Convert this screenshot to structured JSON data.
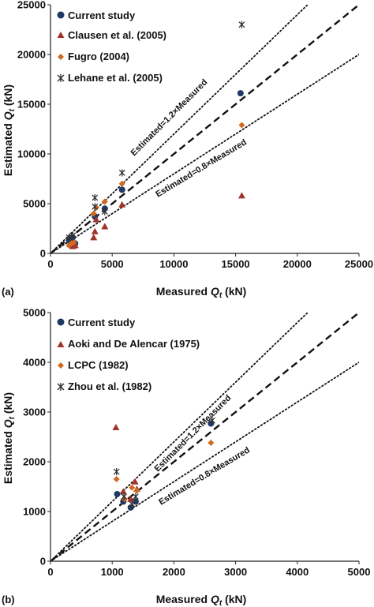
{
  "chart_data": [
    {
      "type": "scatter",
      "panel_label": "(a)",
      "xlabel_main": "Measured ",
      "xlabel_var": "Q",
      "xlabel_sub": "t",
      "xlabel_unit": " (kN)",
      "ylabel_main": "Estimated ",
      "ylabel_var": "Q",
      "ylabel_sub": "t",
      "ylabel_unit": " (kN)",
      "xlim": [
        0,
        25000
      ],
      "ylim": [
        0,
        25000
      ],
      "xticks": [
        0,
        5000,
        10000,
        15000,
        20000,
        25000
      ],
      "yticks": [
        0,
        5000,
        10000,
        15000,
        20000,
        25000
      ],
      "xtick_labels": [
        "0",
        "5000",
        "10000",
        "15000",
        "20000",
        "25000"
      ],
      "ytick_labels": [
        "0",
        "5000",
        "10000",
        "15000",
        "20000",
        "25000"
      ],
      "grid": false,
      "legend_position": "top-left",
      "reference_lines": [
        {
          "slope": 1.0,
          "style": "dashed",
          "label": ""
        },
        {
          "slope": 1.2,
          "style": "dotted",
          "label": "Estimated=1.2×Measured"
        },
        {
          "slope": 0.8,
          "style": "dotted",
          "label": "Estimated=0.8×Measured"
        }
      ],
      "series": [
        {
          "name": "Current study",
          "marker": "circle",
          "color": "#1f3864",
          "points": [
            [
              1500,
              1300
            ],
            [
              1700,
              1500
            ],
            [
              1800,
              1600
            ],
            [
              2000,
              1000
            ],
            [
              3600,
              3700
            ],
            [
              4400,
              4500
            ],
            [
              5800,
              6400
            ],
            [
              15400,
              16100
            ]
          ]
        },
        {
          "name": "Clausen et al. (2005)",
          "marker": "triangle",
          "color": "#a0342a",
          "points": [
            [
              1600,
              900
            ],
            [
              1800,
              700
            ],
            [
              2000,
              800
            ],
            [
              3500,
              1600
            ],
            [
              3600,
              2200
            ],
            [
              3700,
              3400
            ],
            [
              4400,
              2700
            ],
            [
              5800,
              4900
            ],
            [
              15500,
              5800
            ]
          ]
        },
        {
          "name": "Fugro (2004)",
          "marker": "diamond",
          "color": "#d2691e",
          "points": [
            [
              1500,
              800
            ],
            [
              1700,
              1000
            ],
            [
              1900,
              1100
            ],
            [
              3500,
              4000
            ],
            [
              3700,
              4600
            ],
            [
              4400,
              5200
            ],
            [
              5800,
              7000
            ],
            [
              15500,
              12900
            ]
          ]
        },
        {
          "name": "Lehane et al. (2005)",
          "marker": "star",
          "color": "#333333",
          "points": [
            [
              1500,
              1600
            ],
            [
              1800,
              1800
            ],
            [
              3600,
              4700
            ],
            [
              3600,
              5600
            ],
            [
              4400,
              4200
            ],
            [
              5800,
              8100
            ],
            [
              15500,
              23000
            ]
          ]
        }
      ]
    },
    {
      "type": "scatter",
      "panel_label": "(b)",
      "xlabel_main": "Measured ",
      "xlabel_var": "Q",
      "xlabel_sub": "t",
      "xlabel_unit": " (kN)",
      "ylabel_main": "Estimated ",
      "ylabel_var": "Q",
      "ylabel_sub": "t",
      "ylabel_unit": " (kN)",
      "xlim": [
        0,
        5000
      ],
      "ylim": [
        0,
        5000
      ],
      "xticks": [
        0,
        1000,
        2000,
        3000,
        4000,
        5000
      ],
      "yticks": [
        0,
        1000,
        2000,
        3000,
        4000,
        5000
      ],
      "xtick_labels": [
        "0",
        "1000",
        "2000",
        "3000",
        "4000",
        "5000"
      ],
      "ytick_labels": [
        "0",
        "1000",
        "2000",
        "3000",
        "4000",
        "5000"
      ],
      "grid": false,
      "legend_position": "top-left",
      "reference_lines": [
        {
          "slope": 1.0,
          "style": "dashed",
          "label": ""
        },
        {
          "slope": 1.2,
          "style": "dotted",
          "label": "Estimated=1.2×Measured"
        },
        {
          "slope": 0.8,
          "style": "dotted",
          "label": "Estimated=0.8×Measured"
        }
      ],
      "series": [
        {
          "name": "Current study",
          "marker": "circle",
          "color": "#1f3864",
          "points": [
            [
              1080,
              1350
            ],
            [
              1180,
              1200
            ],
            [
              1300,
              1080
            ],
            [
              1380,
              1200
            ],
            [
              2600,
              2770
            ]
          ]
        },
        {
          "name": "Aoki and De Alencar (1975)",
          "marker": "triangle",
          "color": "#a0342a",
          "points": [
            [
              1060,
              2690
            ],
            [
              1180,
              1400
            ],
            [
              1300,
              1250
            ],
            [
              1370,
              1600
            ],
            [
              1400,
              1450
            ]
          ]
        },
        {
          "name": "LCPC (1982)",
          "marker": "diamond",
          "color": "#d2691e",
          "points": [
            [
              1070,
              1650
            ],
            [
              1200,
              1250
            ],
            [
              1320,
              1480
            ],
            [
              1400,
              1420
            ],
            [
              2600,
              2380
            ]
          ]
        },
        {
          "name": "Zhou et al. (1982)",
          "marker": "star",
          "color": "#333333",
          "points": [
            [
              1070,
              1800
            ],
            [
              1190,
              1300
            ],
            [
              1320,
              1150
            ],
            [
              1380,
              1300
            ],
            [
              2620,
              2830
            ]
          ]
        }
      ]
    }
  ]
}
